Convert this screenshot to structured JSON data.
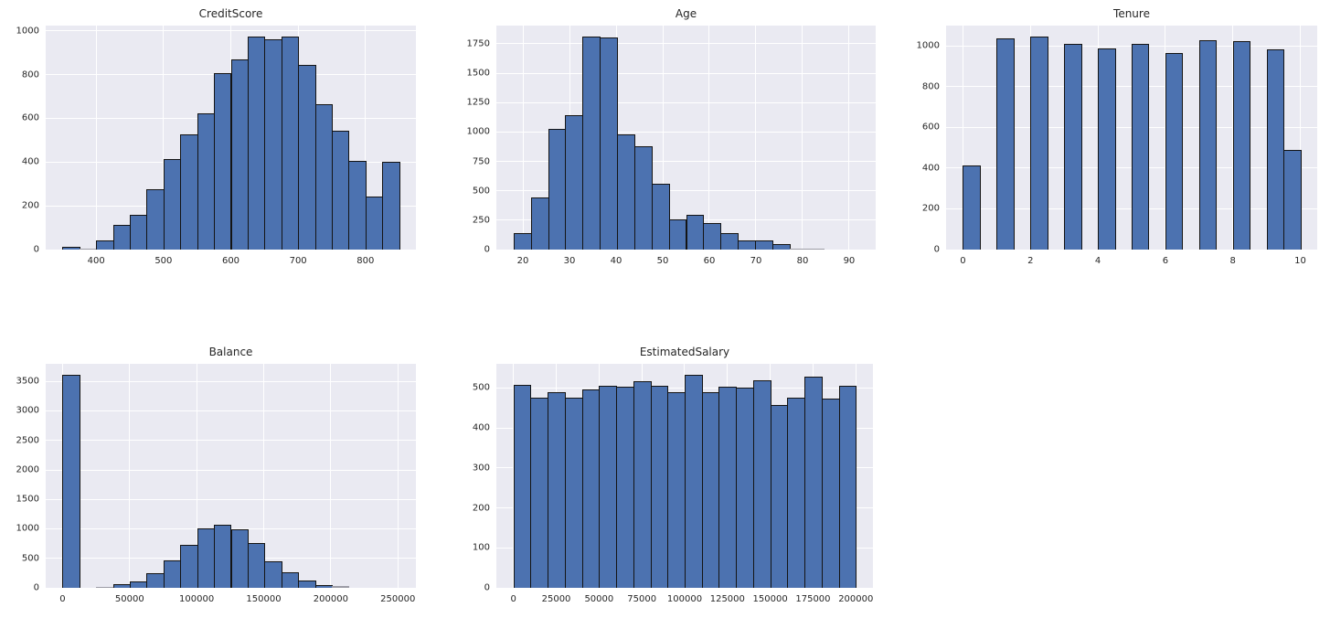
{
  "figure": {
    "background_color": "#ffffff",
    "axes_background_color": "#eaeaf2",
    "grid_color": "#ffffff",
    "bar_fill_color": "#4c72b0",
    "bar_edge_color": "#141414",
    "text_color": "#262626",
    "grid_layout": "2 rows x 3 columns, bottom-right cell empty"
  },
  "chart_data": [
    {
      "type": "bar",
      "subtype": "histogram",
      "title": "CreditScore",
      "bin_start": 350,
      "bin_width": 25,
      "values": [
        11,
        5,
        40,
        112,
        157,
        275,
        414,
        528,
        621,
        806,
        871,
        975,
        961,
        975,
        843,
        663,
        545,
        407,
        243,
        400
      ],
      "x_ticks": [
        400,
        500,
        600,
        700,
        800
      ],
      "y_ticks": [
        0,
        200,
        400,
        600,
        800,
        1000
      ],
      "xlim": [
        325,
        875
      ],
      "ylim": [
        0,
        1024
      ],
      "grid": true,
      "legend": false
    },
    {
      "type": "bar",
      "subtype": "histogram",
      "title": "Age",
      "bin_start": 18,
      "bin_width": 3.7,
      "values": [
        137,
        447,
        1027,
        1143,
        1814,
        1801,
        983,
        880,
        563,
        258,
        297,
        228,
        137,
        77,
        77,
        46,
        8,
        8,
        1,
        1
      ],
      "x_ticks": [
        20,
        30,
        40,
        50,
        60,
        70,
        80,
        90
      ],
      "y_ticks": [
        0,
        250,
        500,
        750,
        1000,
        1250,
        1500,
        1750
      ],
      "xlim": [
        14.3,
        95.7
      ],
      "ylim": [
        0,
        1905
      ],
      "grid": true,
      "legend": false
    },
    {
      "type": "bar",
      "subtype": "histogram",
      "title": "Tenure",
      "bin_start": 0,
      "bin_width": 0.5,
      "values": [
        413,
        0,
        1035,
        0,
        1048,
        0,
        1009,
        0,
        989,
        0,
        1012,
        0,
        967,
        0,
        1028,
        0,
        1025,
        0,
        984,
        490
      ],
      "x_ticks": [
        0,
        2,
        4,
        6,
        8,
        10
      ],
      "y_ticks": [
        0,
        200,
        400,
        600,
        800,
        1000
      ],
      "xlim": [
        -0.5,
        10.5
      ],
      "ylim": [
        0,
        1100
      ],
      "grid": true,
      "legend": false
    },
    {
      "type": "bar",
      "subtype": "histogram",
      "title": "Balance",
      "bin_start": 0,
      "bin_width": 12545,
      "values": [
        3617,
        0,
        15,
        60,
        108,
        248,
        465,
        728,
        1005,
        1075,
        1000,
        754,
        449,
        263,
        124,
        42,
        26,
        0,
        0,
        0
      ],
      "x_ticks": [
        0,
        50000,
        100000,
        150000,
        200000,
        250000
      ],
      "y_ticks": [
        0,
        500,
        1000,
        1500,
        2000,
        2500,
        3000,
        3500
      ],
      "xlim": [
        -12545,
        263443
      ],
      "ylim": [
        0,
        3798
      ],
      "grid": true,
      "legend": false
    },
    {
      "type": "bar",
      "subtype": "histogram",
      "title": "EstimatedSalary",
      "bin_start": 12,
      "bin_width": 9999,
      "values": [
        507,
        475,
        489,
        475,
        496,
        506,
        504,
        517,
        506,
        490,
        533,
        489,
        502,
        500,
        518,
        458,
        475,
        529,
        474,
        506
      ],
      "x_ticks": [
        0,
        25000,
        50000,
        75000,
        100000,
        125000,
        150000,
        175000,
        200000
      ],
      "y_ticks": [
        0,
        100,
        200,
        300,
        400,
        500
      ],
      "xlim": [
        -9988,
        209991
      ],
      "ylim": [
        0,
        560
      ],
      "grid": true,
      "legend": false
    }
  ]
}
